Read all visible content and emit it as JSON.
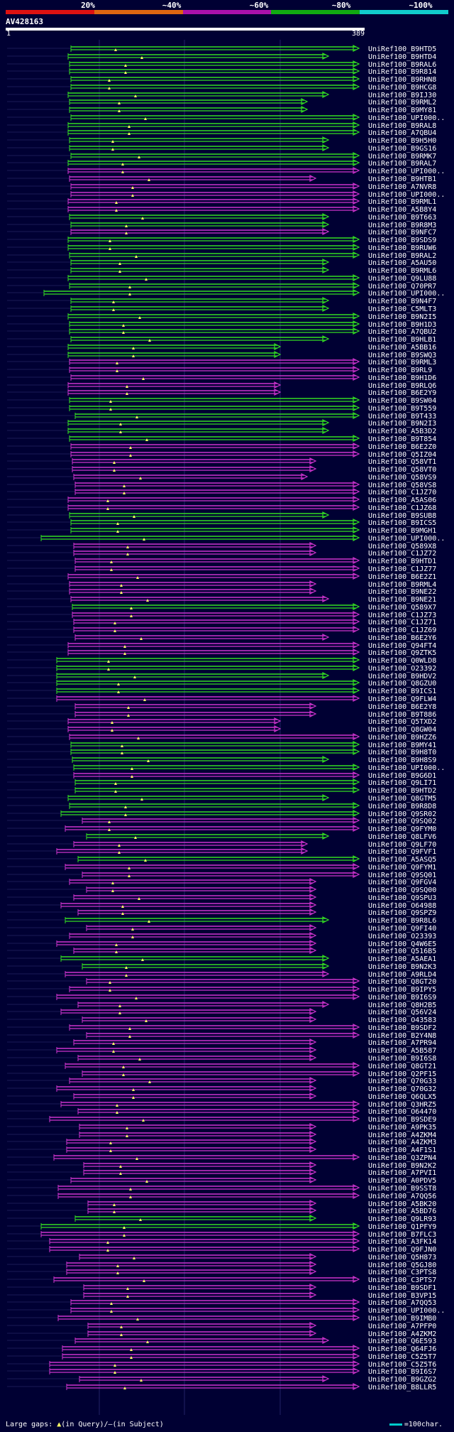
{
  "query": {
    "id": "AV428163",
    "start": "1",
    "end": "389"
  },
  "identity_scale": {
    "labels": [
      "20%",
      "~40%",
      "~60%",
      "~80%",
      "~100%"
    ],
    "colors": [
      "#dd1111",
      "#dd6611",
      "#aa11aa",
      "#11aa11",
      "#11cccc"
    ]
  },
  "colors": {
    "background": "#000033",
    "green": "#33dd22",
    "magenta": "#cc33cc",
    "gap_marker": "#ffff66",
    "divider": "#1a1a55"
  },
  "hits": [
    {
      "id": "UniRef100_B9HTD5",
      "color": "green"
    },
    {
      "id": "UniRef100_B9HTD4",
      "color": "green"
    },
    {
      "id": "UniRef100_B9RAL6",
      "color": "green"
    },
    {
      "id": "UniRef100_B9R814",
      "color": "green"
    },
    {
      "id": "UniRef100_B9RHN8",
      "color": "green"
    },
    {
      "id": "UniRef100_B9HCG8",
      "color": "green"
    },
    {
      "id": "UniRef100_B9IJ30",
      "color": "green"
    },
    {
      "id": "UniRef100_B9RML2",
      "color": "green"
    },
    {
      "id": "UniRef100_B9MY81",
      "color": "green"
    },
    {
      "id": "UniRef100_UPI000..",
      "color": "green"
    },
    {
      "id": "UniRef100_B9RAL8",
      "color": "green"
    },
    {
      "id": "UniRef100_A7QBU4",
      "color": "green"
    },
    {
      "id": "UniRef100_B9H5H0",
      "color": "green"
    },
    {
      "id": "UniRef100_B9GS16",
      "color": "green"
    },
    {
      "id": "UniRef100_B9RMK7",
      "color": "green"
    },
    {
      "id": "UniRef100_B9RAL7",
      "color": "green"
    },
    {
      "id": "UniRef100_UPI000..",
      "color": "magenta"
    },
    {
      "id": "UniRef100_B9HTB1",
      "color": "magenta"
    },
    {
      "id": "UniRef100_A7NVR8",
      "color": "magenta"
    },
    {
      "id": "UniRef100_UPI000..",
      "color": "magenta"
    },
    {
      "id": "UniRef100_B9RML1",
      "color": "magenta"
    },
    {
      "id": "UniRef100_A5B8Y4",
      "color": "magenta"
    },
    {
      "id": "UniRef100_B9T663",
      "color": "green"
    },
    {
      "id": "UniRef100_B9R8M3",
      "color": "green"
    },
    {
      "id": "UniRef100_B9NFC7",
      "color": "magenta"
    },
    {
      "id": "UniRef100_B9SDS9",
      "color": "green"
    },
    {
      "id": "UniRef100_B9RUW6",
      "color": "green"
    },
    {
      "id": "UniRef100_B9RAL2",
      "color": "green"
    },
    {
      "id": "UniRef100_A5AU50",
      "color": "green"
    },
    {
      "id": "UniRef100_B9RML6",
      "color": "green"
    },
    {
      "id": "UniRef100_Q9LU88",
      "color": "green"
    },
    {
      "id": "UniRef100_Q70PR7",
      "color": "green"
    },
    {
      "id": "UniRef100_UPI000..",
      "color": "green"
    },
    {
      "id": "UniRef100_B9N4F7",
      "color": "green"
    },
    {
      "id": "UniRef100_C5MLT3",
      "color": "green"
    },
    {
      "id": "UniRef100_B9N2I5",
      "color": "green"
    },
    {
      "id": "UniRef100_B9H1D3",
      "color": "green"
    },
    {
      "id": "UniRef100_A7QBU2",
      "color": "green"
    },
    {
      "id": "UniRef100_B9HLB1",
      "color": "green"
    },
    {
      "id": "UniRef100_A5BB16",
      "color": "green"
    },
    {
      "id": "UniRef100_B9SWQ3",
      "color": "green"
    },
    {
      "id": "UniRef100_B9RML3",
      "color": "magenta"
    },
    {
      "id": "UniRef100_B9RL9",
      "color": "magenta"
    },
    {
      "id": "UniRef100_B9H1D6",
      "color": "magenta"
    },
    {
      "id": "UniRef100_B9RLQ6",
      "color": "magenta"
    },
    {
      "id": "UniRef100_B6E2Y9",
      "color": "magenta"
    },
    {
      "id": "UniRef100_B9SW04",
      "color": "green"
    },
    {
      "id": "UniRef100_B9T559",
      "color": "green"
    },
    {
      "id": "UniRef100_B9T433",
      "color": "green"
    },
    {
      "id": "UniRef100_B9N2I3",
      "color": "green"
    },
    {
      "id": "UniRef100_A5B3D2",
      "color": "green"
    },
    {
      "id": "UniRef100_B9T854",
      "color": "green"
    },
    {
      "id": "UniRef100_B6E2Z0",
      "color": "magenta"
    },
    {
      "id": "UniRef100_Q5IZ04",
      "color": "magenta"
    },
    {
      "id": "UniRef100_Q58VT1",
      "color": "magenta"
    },
    {
      "id": "UniRef100_Q58VT0",
      "color": "magenta"
    },
    {
      "id": "UniRef100_Q58VS9",
      "color": "magenta"
    },
    {
      "id": "UniRef100_Q58VS8",
      "color": "magenta"
    },
    {
      "id": "UniRef100_C1JZ70",
      "color": "magenta"
    },
    {
      "id": "UniRef100_A5AS06",
      "color": "magenta"
    },
    {
      "id": "UniRef100_C1JZ68",
      "color": "magenta"
    },
    {
      "id": "UniRef100_B9SUB8",
      "color": "green"
    },
    {
      "id": "UniRef100_B9ICS5",
      "color": "green"
    },
    {
      "id": "UniRef100_B9MGH1",
      "color": "green"
    },
    {
      "id": "UniRef100_UPI000..",
      "color": "green"
    },
    {
      "id": "UniRef100_Q589X8",
      "color": "magenta"
    },
    {
      "id": "UniRef100_C1JZ72",
      "color": "magenta"
    },
    {
      "id": "UniRef100_B9HTD1",
      "color": "magenta"
    },
    {
      "id": "UniRef100_C1JZ77",
      "color": "magenta"
    },
    {
      "id": "UniRef100_B6E2Z1",
      "color": "magenta"
    },
    {
      "id": "UniRef100_B9RML4",
      "color": "magenta"
    },
    {
      "id": "UniRef100_B9NE22",
      "color": "magenta"
    },
    {
      "id": "UniRef100_B9NE21",
      "color": "magenta"
    },
    {
      "id": "UniRef100_Q589X7",
      "color": "green"
    },
    {
      "id": "UniRef100_C1JZ73",
      "color": "magenta"
    },
    {
      "id": "UniRef100_C1JZ71",
      "color": "magenta"
    },
    {
      "id": "UniRef100_C1JZ69",
      "color": "magenta"
    },
    {
      "id": "UniRef100_B6E2Y6",
      "color": "magenta"
    },
    {
      "id": "UniRef100_Q94FT4",
      "color": "magenta"
    },
    {
      "id": "UniRef100_Q9ZTK5",
      "color": "magenta"
    },
    {
      "id": "UniRef100_Q0WLD8",
      "color": "green"
    },
    {
      "id": "UniRef100_O23392",
      "color": "green"
    },
    {
      "id": "UniRef100_B9HDV2",
      "color": "green"
    },
    {
      "id": "UniRef100_Q8GZU0",
      "color": "green"
    },
    {
      "id": "UniRef100_B9ICS1",
      "color": "green"
    },
    {
      "id": "UniRef100_Q9FLW4",
      "color": "magenta"
    },
    {
      "id": "UniRef100_B6E2Y8",
      "color": "magenta"
    },
    {
      "id": "UniRef100_B9T886",
      "color": "magenta"
    },
    {
      "id": "UniRef100_Q5TXD2",
      "color": "magenta"
    },
    {
      "id": "UniRef100_Q8GW04",
      "color": "magenta"
    },
    {
      "id": "UniRef100_B9HZZ6",
      "color": "magenta"
    },
    {
      "id": "UniRef100_B9MY41",
      "color": "green"
    },
    {
      "id": "UniRef100_B9H8T0",
      "color": "green"
    },
    {
      "id": "UniRef100_B9H8S9",
      "color": "green"
    },
    {
      "id": "UniRef100_UPI000..",
      "color": "green"
    },
    {
      "id": "UniRef100_B9G6D1",
      "color": "magenta"
    },
    {
      "id": "UniRef100_Q9LI71",
      "color": "green"
    },
    {
      "id": "UniRef100_B9HTD2",
      "color": "green"
    },
    {
      "id": "UniRef100_Q8GTM5",
      "color": "green"
    },
    {
      "id": "UniRef100_B9R8D8",
      "color": "green"
    },
    {
      "id": "UniRef100_Q9SR02",
      "color": "green"
    },
    {
      "id": "UniRef100_Q9SQ02",
      "color": "magenta"
    },
    {
      "id": "UniRef100_Q9FYM0",
      "color": "magenta"
    },
    {
      "id": "UniRef100_Q8LFV6",
      "color": "green"
    },
    {
      "id": "UniRef100_Q9LF70",
      "color": "magenta"
    },
    {
      "id": "UniRef100_Q9FVF1",
      "color": "magenta"
    },
    {
      "id": "UniRef100_A5ASQ5",
      "color": "green"
    },
    {
      "id": "UniRef100_Q9FYM1",
      "color": "magenta"
    },
    {
      "id": "UniRef100_Q9SQ01",
      "color": "magenta"
    },
    {
      "id": "UniRef100_Q9FGV4",
      "color": "magenta"
    },
    {
      "id": "UniRef100_Q9SQ00",
      "color": "magenta"
    },
    {
      "id": "UniRef100_Q9SPU3",
      "color": "magenta"
    },
    {
      "id": "UniRef100_O64988",
      "color": "magenta"
    },
    {
      "id": "UniRef100_Q9SPZ9",
      "color": "magenta"
    },
    {
      "id": "UniRef100_B9R8L6",
      "color": "green"
    },
    {
      "id": "UniRef100_Q9FI40",
      "color": "magenta"
    },
    {
      "id": "UniRef100_O23393",
      "color": "magenta"
    },
    {
      "id": "UniRef100_Q4W6E5",
      "color": "magenta"
    },
    {
      "id": "UniRef100_Q516B5",
      "color": "magenta"
    },
    {
      "id": "UniRef100_A5AEA1",
      "color": "green"
    },
    {
      "id": "UniRef100_B9N2K3",
      "color": "green"
    },
    {
      "id": "UniRef100_A9RLD4",
      "color": "magenta"
    },
    {
      "id": "UniRef100_Q8GT20",
      "color": "magenta"
    },
    {
      "id": "UniRef100_B9IPY5",
      "color": "magenta"
    },
    {
      "id": "UniRef100_B9I6S9",
      "color": "magenta"
    },
    {
      "id": "UniRef100_Q8H2B5",
      "color": "magenta"
    },
    {
      "id": "UniRef100_Q56V24",
      "color": "magenta"
    },
    {
      "id": "UniRef100_O43583",
      "color": "magenta"
    },
    {
      "id": "UniRef100_B9SDF2",
      "color": "magenta"
    },
    {
      "id": "UniRef100_B2Y4N8",
      "color": "magenta"
    },
    {
      "id": "UniRef100_A7PR94",
      "color": "magenta"
    },
    {
      "id": "UniRef100_A5B587",
      "color": "magenta"
    },
    {
      "id": "UniRef100_B9I6S8",
      "color": "magenta"
    },
    {
      "id": "UniRef100_Q8GT21",
      "color": "magenta"
    },
    {
      "id": "UniRef100_Q2PF15",
      "color": "magenta"
    },
    {
      "id": "UniRef100_Q70G33",
      "color": "magenta"
    },
    {
      "id": "UniRef100_Q70G32",
      "color": "magenta"
    },
    {
      "id": "UniRef100_Q6QLX5",
      "color": "magenta"
    },
    {
      "id": "UniRef100_Q3HRZ5",
      "color": "magenta"
    },
    {
      "id": "UniRef100_O64470",
      "color": "magenta"
    },
    {
      "id": "UniRef100_B9SDE9",
      "color": "magenta"
    },
    {
      "id": "UniRef100_A9PK35",
      "color": "magenta"
    },
    {
      "id": "UniRef100_A4ZKM4",
      "color": "magenta"
    },
    {
      "id": "UniRef100_A4ZKM3",
      "color": "magenta"
    },
    {
      "id": "UniRef100_A4F1S1",
      "color": "magenta"
    },
    {
      "id": "UniRef100_Q3ZPN4",
      "color": "magenta"
    },
    {
      "id": "UniRef100_B9N2K2",
      "color": "magenta"
    },
    {
      "id": "UniRef100_A7PVI1",
      "color": "magenta"
    },
    {
      "id": "UniRef100_A0PDV5",
      "color": "magenta"
    },
    {
      "id": "UniRef100_B9SST8",
      "color": "magenta"
    },
    {
      "id": "UniRef100_A7QQ56",
      "color": "magenta"
    },
    {
      "id": "UniRef100_A5BK20",
      "color": "magenta"
    },
    {
      "id": "UniRef100_A5BD76",
      "color": "magenta"
    },
    {
      "id": "UniRef100_Q9LR93",
      "color": "green"
    },
    {
      "id": "UniRef100_Q1PFY9",
      "color": "green"
    },
    {
      "id": "UniRef100_B7FLC3",
      "color": "magenta"
    },
    {
      "id": "UniRef100_A3FK14",
      "color": "magenta"
    },
    {
      "id": "UniRef100_Q9FJN0",
      "color": "magenta"
    },
    {
      "id": "UniRef100_Q5H873",
      "color": "magenta"
    },
    {
      "id": "UniRef100_Q5GJ80",
      "color": "magenta"
    },
    {
      "id": "UniRef100_C3PTS8",
      "color": "magenta"
    },
    {
      "id": "UniRef100_C3PTS7",
      "color": "magenta"
    },
    {
      "id": "UniRef100_B9SDF1",
      "color": "magenta"
    },
    {
      "id": "UniRef100_B3VP15",
      "color": "magenta"
    },
    {
      "id": "UniRef100_A7QQ53",
      "color": "magenta"
    },
    {
      "id": "UniRef100_UPI000..",
      "color": "magenta"
    },
    {
      "id": "UniRef100_B9IMB0",
      "color": "magenta"
    },
    {
      "id": "UniRef100_A7PFP0",
      "color": "magenta"
    },
    {
      "id": "UniRef100_A4ZKM2",
      "color": "magenta"
    },
    {
      "id": "UniRef100_Q6E593",
      "color": "magenta"
    },
    {
      "id": "UniRef100_Q64FJ6",
      "color": "magenta"
    },
    {
      "id": "UniRef100_C5Z5T7",
      "color": "magenta"
    },
    {
      "id": "UniRef100_C5Z5T6",
      "color": "magenta"
    },
    {
      "id": "UniRef100_B9I6S7",
      "color": "magenta"
    },
    {
      "id": "UniRef100_B9GZG2",
      "color": "magenta"
    },
    {
      "id": "UniRef100_B8LLR5",
      "color": "magenta"
    }
  ],
  "footer": {
    "gaps_prefix": "Large gaps: ",
    "gaps_query": "(in Query)/",
    "gaps_subject": "(in Subject)",
    "scale_label": "=100char."
  }
}
